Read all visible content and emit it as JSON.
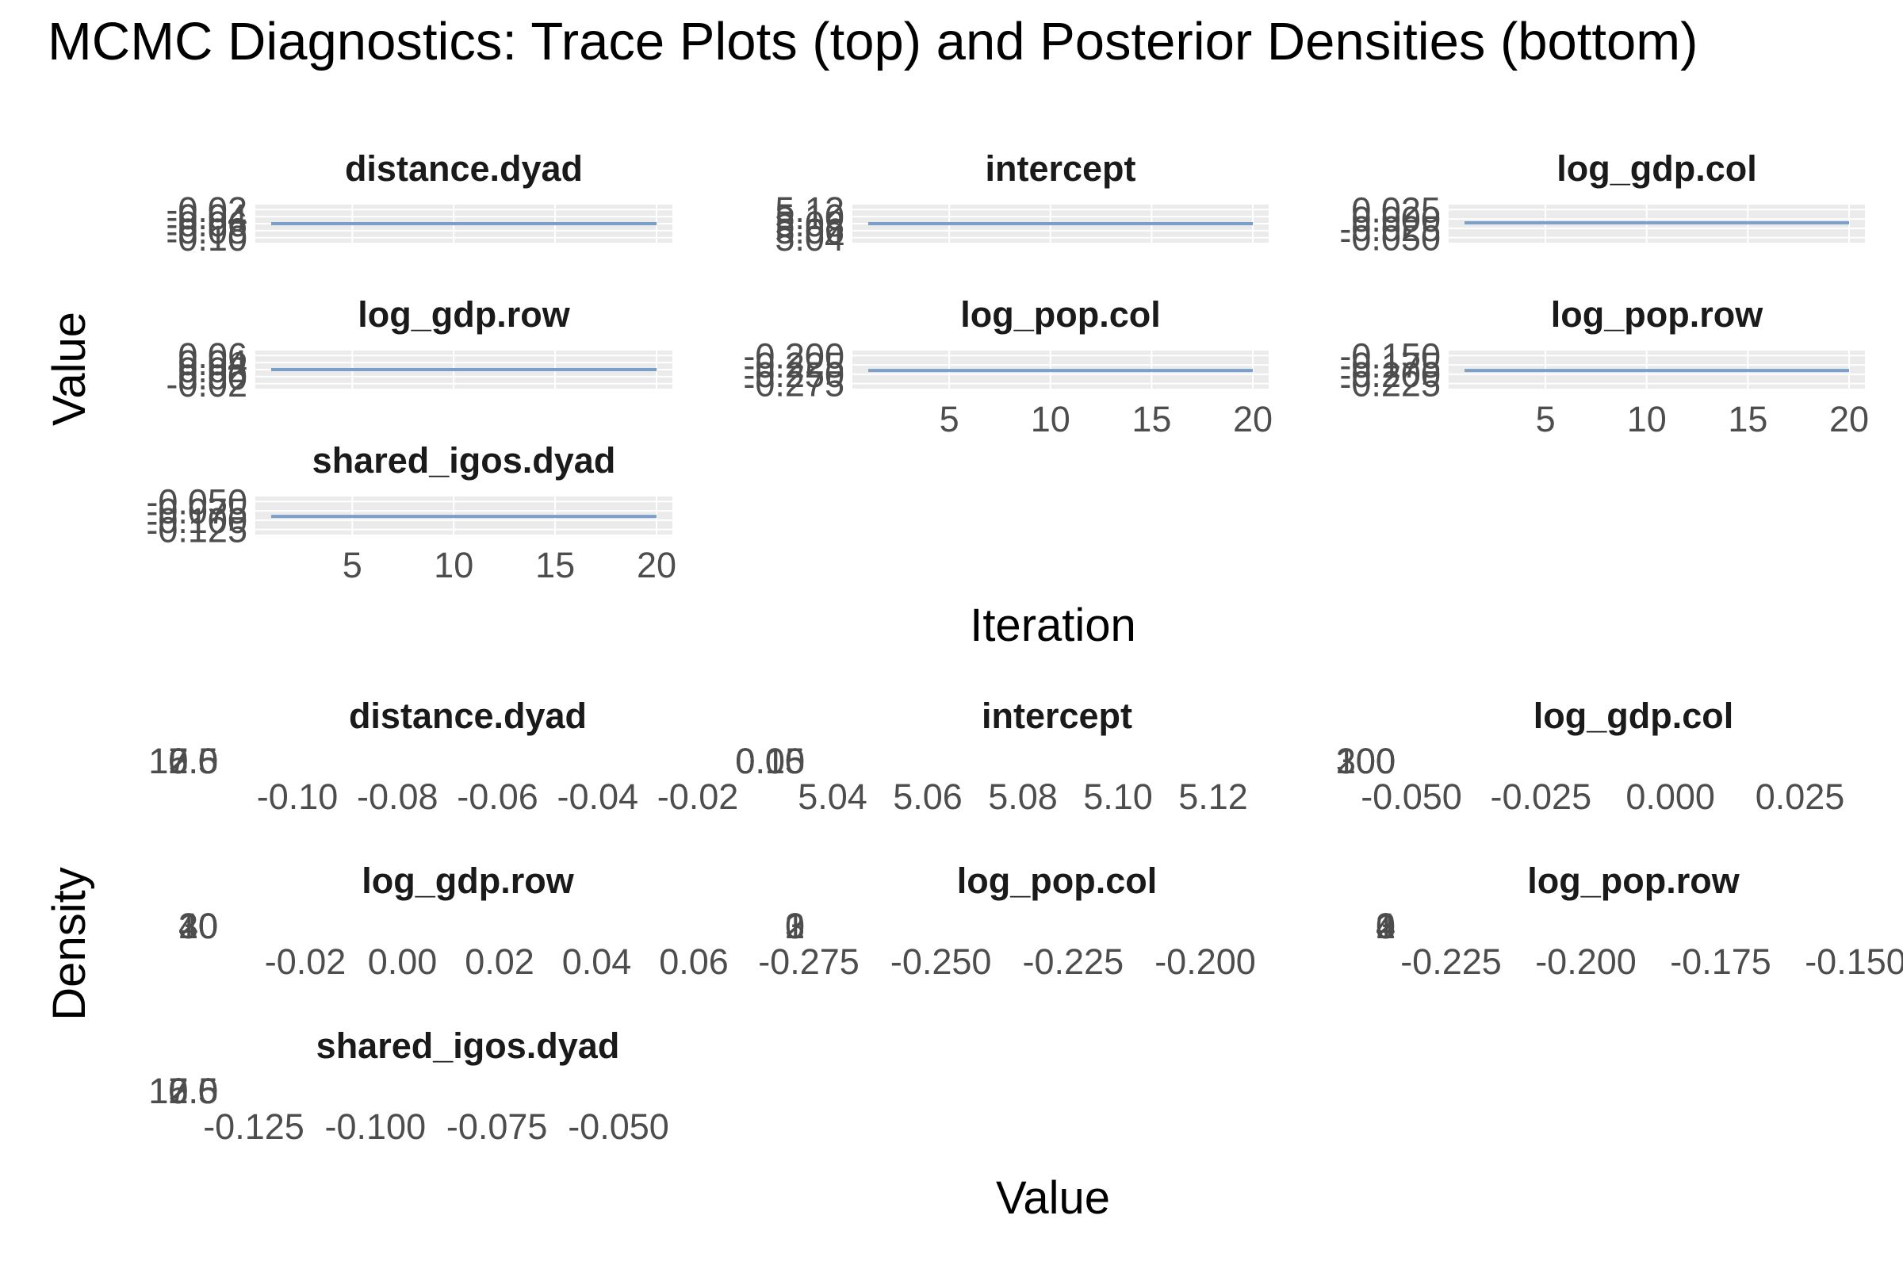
{
  "title": "MCMC Diagnostics: Trace Plots (top) and Posterior Densities (bottom)",
  "colors": {
    "trace_line": "#7a9fc9",
    "panel_bg": "#ebebeb",
    "strip_text": "#1a1a1a",
    "tick_text": "#4d4d4d"
  },
  "chart_data": [
    {
      "type": "line",
      "section": "trace",
      "xlabel": "Iteration",
      "ylabel": "Value",
      "x_ticks": [
        "5",
        "10",
        "15",
        "20"
      ],
      "xlim": [
        1,
        20
      ],
      "panels": [
        {
          "name": "distance.dyad",
          "y_ticks": [
            "-0.02",
            "-0.04",
            "-0.06",
            "-0.08",
            "-0.10"
          ],
          "ylim": [
            -0.105,
            -0.015
          ],
          "value": -0.06,
          "show_x_ticks": false
        },
        {
          "name": "intercept",
          "y_ticks": [
            "5.12",
            "5.10",
            "5.08",
            "5.06",
            "5.04"
          ],
          "ylim": [
            5.035,
            5.125
          ],
          "value": 5.08,
          "show_x_ticks": false
        },
        {
          "name": "log_gdp.col",
          "y_ticks": [
            "0.025",
            "0.000",
            "-0.025",
            "-0.050"
          ],
          "ylim": [
            -0.055,
            0.03
          ],
          "value": -0.01,
          "show_x_ticks": false
        },
        {
          "name": "log_gdp.row",
          "y_ticks": [
            "0.06",
            "0.04",
            "0.02",
            "0.00",
            "-0.02"
          ],
          "ylim": [
            -0.025,
            0.065
          ],
          "value": 0.02,
          "show_x_ticks": false
        },
        {
          "name": "log_pop.col",
          "y_ticks": [
            "-0.200",
            "-0.225",
            "-0.250",
            "-0.275"
          ],
          "ylim": [
            -0.28,
            -0.195
          ],
          "value": -0.24,
          "show_x_ticks": true
        },
        {
          "name": "log_pop.row",
          "y_ticks": [
            "-0.150",
            "-0.175",
            "-0.200",
            "-0.225"
          ],
          "ylim": [
            -0.23,
            -0.145
          ],
          "value": -0.19,
          "show_x_ticks": true
        },
        {
          "name": "shared_igos.dyad",
          "y_ticks": [
            "-0.050",
            "-0.075",
            "-0.100",
            "-0.125"
          ],
          "ylim": [
            -0.13,
            -0.045
          ],
          "value": -0.09,
          "show_x_ticks": true
        }
      ]
    },
    {
      "type": "area",
      "section": "density",
      "xlabel": "Value",
      "ylabel": "Density",
      "panels": [
        {
          "name": "distance.dyad",
          "x_ticks": [
            "-0.10",
            "-0.08",
            "-0.06",
            "-0.04",
            "-0.02"
          ],
          "y_ticks": [
            "0.0",
            "2.5",
            "5.0",
            "7.5",
            "10.0",
            "12.5"
          ]
        },
        {
          "name": "intercept",
          "x_ticks": [
            "5.04",
            "5.06",
            "5.08",
            "5.10",
            "5.12"
          ],
          "y_ticks": [
            "0.00",
            "0.05",
            "0.10",
            "0.15"
          ]
        },
        {
          "name": "log_gdp.col",
          "x_ticks": [
            "-0.050",
            "-0.025",
            "0.000",
            "0.025"
          ],
          "y_ticks": [
            "0",
            "100",
            "200",
            "300"
          ]
        },
        {
          "name": "log_gdp.row",
          "x_ticks": [
            "-0.02",
            "0.00",
            "0.02",
            "0.04",
            "0.06"
          ],
          "y_ticks": [
            "0",
            "10",
            "20",
            "30",
            "40"
          ]
        },
        {
          "name": "log_pop.col",
          "x_ticks": [
            "-0.275",
            "-0.250",
            "-0.225",
            "-0.200"
          ],
          "y_ticks": [
            "0",
            "1",
            "2",
            "3"
          ]
        },
        {
          "name": "log_pop.row",
          "x_ticks": [
            "-0.225",
            "-0.200",
            "-0.175",
            "-0.150"
          ],
          "y_ticks": [
            "0",
            "1",
            "2",
            "3",
            "4"
          ]
        },
        {
          "name": "shared_igos.dyad",
          "x_ticks": [
            "-0.125",
            "-0.100",
            "-0.075",
            "-0.050"
          ],
          "y_ticks": [
            "0.0",
            "2.5",
            "5.0",
            "7.5",
            "10.0",
            "12.5"
          ]
        }
      ]
    }
  ]
}
